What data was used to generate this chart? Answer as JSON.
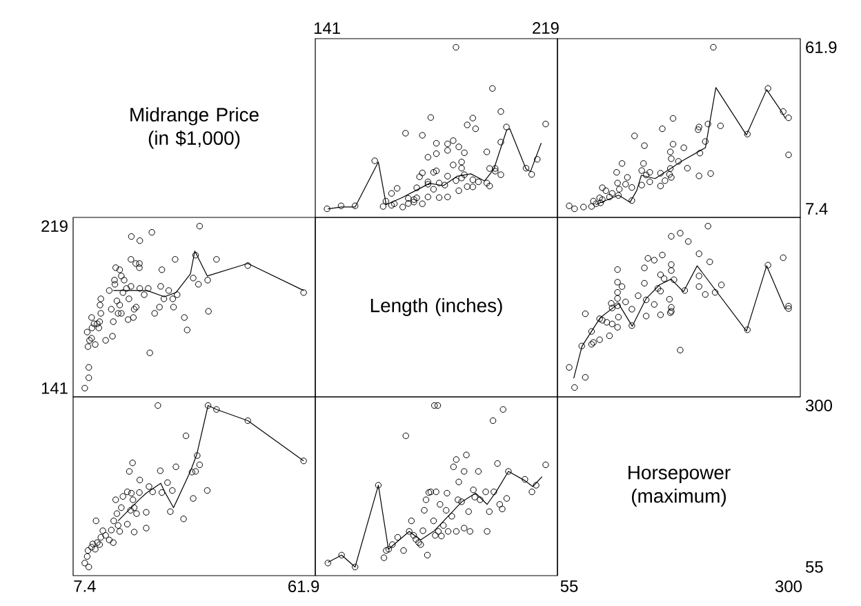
{
  "chart_data": [
    {
      "type": "other",
      "title": "Midrange Price (in $1,000)"
    },
    {
      "type": "scatter",
      "xlim": [
        136.8,
        223.2
      ],
      "ylim": [
        4.5,
        64.8
      ],
      "xticks": [
        141,
        219
      ],
      "tick_labels": "x",
      "series": [
        {
          "type": "scatter",
          "marker": "circle",
          "color": "#000000",
          "x": [
            141,
            146,
            151,
            161,
            164,
            168,
            162,
            165,
            170,
            175,
            172,
            172,
            173,
            177,
            181,
            184,
            170,
            164,
            166,
            173,
            179,
            188,
            191,
            199,
            193,
            198,
            195,
            187,
            193,
            183,
            181,
            177,
            177,
            203,
            201,
            201,
            199,
            214,
            212,
            216,
            189,
            184,
            174,
            175,
            179,
            180,
            190,
            189,
            186,
            189,
            158,
            177,
            180,
            198,
            190,
            184,
            188,
            184,
            180,
            203,
            186,
            175,
            169,
            194,
            205,
            191,
            219,
            193,
            178,
            203,
            200,
            187
          ],
          "values": [
            7.4,
            8.4,
            8.4,
            8.2,
            8.6,
            8.0,
            10.0,
            9.1,
            9.2,
            9.1,
            9.7,
            10.5,
            11.1,
            11.4,
            11.2,
            11.4,
            10.9,
            12.6,
            14.3,
            14.5,
            14.0,
            13.5,
            14.9,
            15.1,
            14.8,
            16.1,
            16.5,
            16.9,
            17.2,
            15.4,
            16.1,
            16.5,
            15.7,
            18.9,
            20.1,
            21.0,
            21.0,
            19.0,
            21.1,
            24.1,
            17.8,
            18.4,
            18.2,
            19.5,
            19.7,
            20.2,
            18.9,
            21.1,
            22.2,
            23.2,
            23.6,
            24.8,
            26.0,
            26.6,
            26.3,
            27.1,
            28.3,
            29.3,
            29.5,
            29.9,
            30.4,
            32.2,
            32.9,
            34.4,
            35.0,
            35.7,
            36.0,
            38.0,
            38.2,
            40.2,
            48.0,
            61.9
          ]
        },
        {
          "type": "line",
          "marker": "none",
          "color": "#000000",
          "x": [
            141.3,
            146.2,
            151,
            159.3,
            162.1,
            167.8,
            172.7,
            177.6,
            182.5,
            187.4,
            192.3,
            197.2,
            200.5,
            205.1,
            206.2,
            212,
            213.6,
            217.4
          ],
          "values": [
            7.4,
            8.0,
            8.0,
            23.2,
            8.8,
            11.2,
            13.6,
            16.0,
            15.2,
            18.4,
            19.2,
            16.8,
            20.8,
            34.0,
            34.4,
            20.8,
            20.0,
            29.6
          ]
        }
      ]
    },
    {
      "type": "scatter",
      "xlim": [
        41.9,
        313.1
      ],
      "ylim": [
        4.5,
        64.8
      ],
      "yticks": [
        7.4,
        61.9
      ],
      "tick_labels": "y",
      "series": [
        {
          "type": "scatter",
          "marker": "circle",
          "color": "#000000",
          "x": [
            61,
            55,
            71,
            80,
            85,
            90,
            82,
            92,
            89,
            100,
            110,
            103,
            96,
            92,
            111,
            125,
            125,
            109,
            136,
            145,
            157,
            162,
            169,
            167,
            145,
            136,
            141,
            157,
            168,
            200,
            213,
            187,
            108,
            114,
            138,
            177,
            169,
            201,
            168,
            300,
            183,
            139,
            171,
            207,
            128,
            254,
            159,
            199,
            200,
            224,
            210,
            171,
            300,
            294,
            277,
            216,
            120,
            118
          ],
          "values": [
            7.4,
            8.4,
            8.0,
            8.2,
            9.1,
            9.4,
            10.0,
            10.5,
            11.1,
            11.4,
            11.9,
            12.6,
            13.5,
            14.5,
            14.0,
            10.2,
            14.6,
            16.1,
            15.4,
            16.5,
            15.1,
            16.9,
            18.0,
            19.0,
            19.7,
            20.3,
            18.8,
            19.4,
            21.0,
            18.5,
            19.3,
            21.1,
            19.7,
            22.7,
            22.7,
            23.4,
            24.3,
            26.2,
            26.6,
            25.6,
            28.0,
            28.7,
            29.2,
            30.1,
            32.0,
            32.6,
            34.4,
            34.1,
            35.0,
            35.4,
            36.0,
            37.9,
            38.1,
            40.2,
            48.0,
            61.9,
            18.0,
            15.7
          ]
        },
        {
          "type": "line",
          "marker": "none",
          "color": "#000000",
          "x": [
            84.6,
            110.1,
            122.9,
            130.5,
            135.6,
            151,
            171.4,
            179,
            207.1,
            218.8,
            253,
            275.5,
            292.8,
            296.4
          ],
          "values": [
            8.8,
            12.0,
            9.6,
            13.6,
            18.7,
            17.6,
            21.6,
            23.2,
            28.0,
            48.3,
            32.3,
            47.6,
            39.9,
            37.9
          ]
        }
      ]
    },
    {
      "type": "scatter",
      "xlim": [
        4.5,
        64.8
      ],
      "ylim": [
        136.8,
        223.2
      ],
      "yticks": [
        141,
        219
      ],
      "tick_labels": "y",
      "series": [
        {
          "type": "scatter",
          "marker": "circle",
          "color": "#000000",
          "x": [
            7.4,
            8.4,
            8.4,
            8.2,
            8.6,
            8.0,
            10.0,
            9.1,
            9.2,
            9.1,
            9.7,
            10.5,
            11.1,
            11.4,
            11.2,
            11.4,
            10.9,
            12.6,
            14.3,
            14.5,
            14.0,
            13.5,
            14.9,
            15.1,
            14.8,
            16.1,
            16.5,
            16.9,
            17.2,
            15.4,
            16.1,
            16.5,
            15.7,
            18.9,
            20.1,
            21.0,
            21.0,
            19.0,
            21.1,
            24.1,
            17.8,
            18.4,
            18.2,
            19.5,
            19.7,
            20.2,
            18.9,
            21.1,
            22.2,
            23.2,
            23.6,
            24.8,
            26.0,
            26.6,
            26.3,
            27.1,
            28.3,
            29.3,
            29.5,
            29.9,
            30.4,
            32.2,
            32.9,
            34.4,
            35.0,
            35.7,
            36.0,
            38.0,
            38.2,
            40.2,
            48.0,
            61.9
          ],
          "values": [
            141,
            146,
            151,
            161,
            164,
            168,
            162,
            165,
            170,
            175,
            172,
            172,
            173,
            177,
            181,
            184,
            170,
            164,
            166,
            173,
            179,
            188,
            191,
            199,
            193,
            198,
            195,
            187,
            193,
            183,
            181,
            177,
            177,
            203,
            201,
            201,
            199,
            214,
            212,
            216,
            189,
            184,
            174,
            175,
            179,
            180,
            190,
            189,
            186,
            189,
            158,
            177,
            180,
            198,
            190,
            184,
            188,
            184,
            180,
            203,
            186,
            175,
            169,
            194,
            205,
            191,
            219,
            193,
            178,
            203,
            200,
            187
          ]
        },
        {
          "type": "line",
          "marker": "none",
          "color": "#000000",
          "x": [
            14.5,
            22.9,
            27.2,
            30.1,
            33.7,
            34.8,
            37.9,
            48.0,
            61.9
          ],
          "values": [
            188,
            188,
            185,
            187,
            196,
            207,
            195,
            201,
            188
          ]
        }
      ]
    },
    {
      "type": "other",
      "title": "Length (inches)"
    },
    {
      "type": "scatter",
      "xlim": [
        41.9,
        313.1
      ],
      "ylim": [
        136.8,
        223.2
      ],
      "tick_labels": false,
      "series": [
        {
          "type": "scatter",
          "marker": "circle",
          "color": "#000000",
          "x": [
            61,
            73,
            55,
            179,
            69,
            80,
            82,
            89,
            100,
            80,
            254,
            109,
            125,
            103,
            97,
            92,
            89,
            110,
            141,
            73,
            157,
            168,
            169,
            125,
            103,
            169,
            300,
            300,
            109,
            150,
            102,
            118,
            141,
            167,
            109,
            132,
            207,
            218,
            109,
            157,
            184,
            154,
            114,
            200,
            225,
            139,
            109,
            172,
            161,
            200,
            157,
            169,
            109,
            139,
            277,
            169,
            212,
            150,
            143,
            159,
            294,
            200,
            188,
            169,
            179,
            210
          ],
          "values": [
            141.3,
            146.2,
            151,
            159.3,
            161.3,
            162.1,
            163,
            164.3,
            166.2,
            168.3,
            169.1,
            170.3,
            171.1,
            171.9,
            172.7,
            173.7,
            174.4,
            175.2,
            175.7,
            176.8,
            176.3,
            177.3,
            178,
            179,
            179.6,
            179.9,
            179.3,
            180.5,
            180.7,
            181.3,
            181.8,
            182.5,
            183.5,
            183.8,
            184.2,
            185.5,
            186.1,
            187.1,
            187.1,
            187.7,
            188,
            189,
            189.9,
            189.9,
            190.7,
            191.5,
            192,
            193.2,
            193.7,
            195,
            195.6,
            197.6,
            198.1,
            198.9,
            200.2,
            200.5,
            201.8,
            202.6,
            203.5,
            205.1,
            203.8,
            205.7,
            211.6,
            214.1,
            215.6,
            219
          ]
        },
        {
          "type": "line",
          "marker": "none",
          "color": "#000000",
          "x": [
            60.1,
            69.3,
            89.7,
            110.1,
            125.4,
            140.7,
            156.1,
            168.8,
            182.6,
            197.9,
            253,
            275.5,
            296.4
          ],
          "values": [
            145.7,
            161.2,
            174.9,
            181.7,
            170.8,
            184.0,
            190.8,
            193.5,
            187.4,
            199.9,
            168.5,
            199.9,
            178.9
          ]
        }
      ]
    },
    {
      "type": "scatter",
      "xlim": [
        4.5,
        64.8
      ],
      "ylim": [
        41.9,
        313.1
      ],
      "xticks": [
        7.4,
        61.9
      ],
      "tick_labels": "x",
      "series": [
        {
          "type": "scatter",
          "marker": "circle",
          "color": "#000000",
          "x": [
            7.4,
            8.4,
            8.0,
            8.2,
            9.1,
            9.4,
            10.0,
            10.5,
            11.1,
            11.4,
            11.9,
            12.6,
            13.5,
            14.5,
            14.0,
            10.2,
            14.6,
            16.1,
            15.4,
            16.5,
            15.1,
            16.9,
            18.0,
            19.0,
            19.7,
            20.3,
            18.8,
            19.4,
            21.0,
            18.5,
            19.3,
            21.1,
            19.7,
            22.7,
            22.7,
            23.4,
            24.3,
            26.2,
            26.6,
            25.6,
            28.0,
            28.7,
            29.2,
            30.1,
            32.0,
            32.6,
            34.4,
            34.1,
            35.0,
            35.4,
            36.0,
            37.9,
            38.1,
            40.2,
            48.0,
            61.9,
            18.0,
            15.7
          ],
          "values": [
            61,
            55,
            71,
            80,
            85,
            90,
            82,
            92,
            89,
            100,
            110,
            103,
            96,
            92,
            111,
            125,
            125,
            109,
            136,
            145,
            157,
            162,
            169,
            167,
            145,
            136,
            141,
            157,
            168,
            200,
            213,
            187,
            108,
            114,
            138,
            177,
            169,
            201,
            168,
            300,
            183,
            139,
            171,
            207,
            128,
            254,
            159,
            199,
            200,
            224,
            210,
            171,
            300,
            294,
            277,
            216,
            120,
            118
          ]
        },
        {
          "type": "line",
          "marker": "none",
          "color": "#000000",
          "x": [
            15.7,
            20.9,
            22.7,
            26.3,
            27.3,
            29.5,
            33.7,
            35.3,
            38.1,
            40.2,
            48.0,
            61.9
          ],
          "values": [
            125,
            157,
            167,
            182,
            169,
            145,
            200,
            226,
            300,
            294,
            277,
            216
          ]
        }
      ]
    },
    {
      "type": "scatter",
      "xlim": [
        136.8,
        223.2
      ],
      "ylim": [
        41.9,
        313.1
      ],
      "tick_labels": false,
      "series": [
        {
          "type": "scatter",
          "marker": "circle",
          "color": "#000000",
          "x": [
            141.3,
            146.2,
            151,
            159.3,
            161.3,
            162.1,
            163,
            164.3,
            166.2,
            168.3,
            169.1,
            170.3,
            171.1,
            171.9,
            172.7,
            173.7,
            174.4,
            175.2,
            175.7,
            176.8,
            176.3,
            177.3,
            178,
            179,
            179.6,
            179.9,
            179.3,
            180.5,
            180.7,
            181.3,
            181.8,
            182.5,
            183.5,
            183.8,
            184.2,
            185.5,
            186.1,
            187.1,
            187.1,
            187.7,
            188,
            189,
            189.9,
            189.9,
            190.7,
            191.5,
            192,
            193.2,
            193.7,
            195,
            195.6,
            197.6,
            198.1,
            198.9,
            200.2,
            200.5,
            201.8,
            202.6,
            203.5,
            205.1,
            203.8,
            205.7,
            211.6,
            214.1,
            215.6,
            219
          ],
          "values": [
            61,
            73,
            55,
            179,
            69,
            80,
            82,
            89,
            100,
            80,
            254,
            109,
            125,
            103,
            97,
            92,
            89,
            110,
            141,
            73,
            157,
            168,
            169,
            125,
            103,
            169,
            300,
            300,
            109,
            150,
            102,
            118,
            141,
            167,
            109,
            132,
            207,
            218,
            109,
            157,
            184,
            154,
            114,
            200,
            225,
            139,
            109,
            172,
            161,
            200,
            157,
            169,
            109,
            139,
            277,
            169,
            212,
            150,
            143,
            159,
            294,
            200,
            188,
            169,
            179,
            210
          ]
        },
        {
          "type": "line",
          "marker": "none",
          "color": "#000000",
          "x": [
            141.3,
            146.2,
            151,
            159.3,
            162.9,
            170.3,
            174.4,
            179.3,
            184.2,
            189.1,
            194,
            198.1,
            201.3,
            205.7,
            211.6,
            214.4,
            217.7
          ],
          "values": [
            62,
            73,
            55,
            179,
            82,
            109,
            96,
            110,
            132,
            154,
            167,
            150,
            169,
            200,
            186,
            177,
            192
          ]
        }
      ]
    },
    {
      "type": "scatter",
      "title": "Horsepower (maximum)",
      "xlim": [
        41.9,
        313.1
      ],
      "ylim": [
        41.9,
        313.1
      ],
      "xticks": [
        55,
        300
      ],
      "yticks": [
        55,
        300
      ]
    }
  ]
}
